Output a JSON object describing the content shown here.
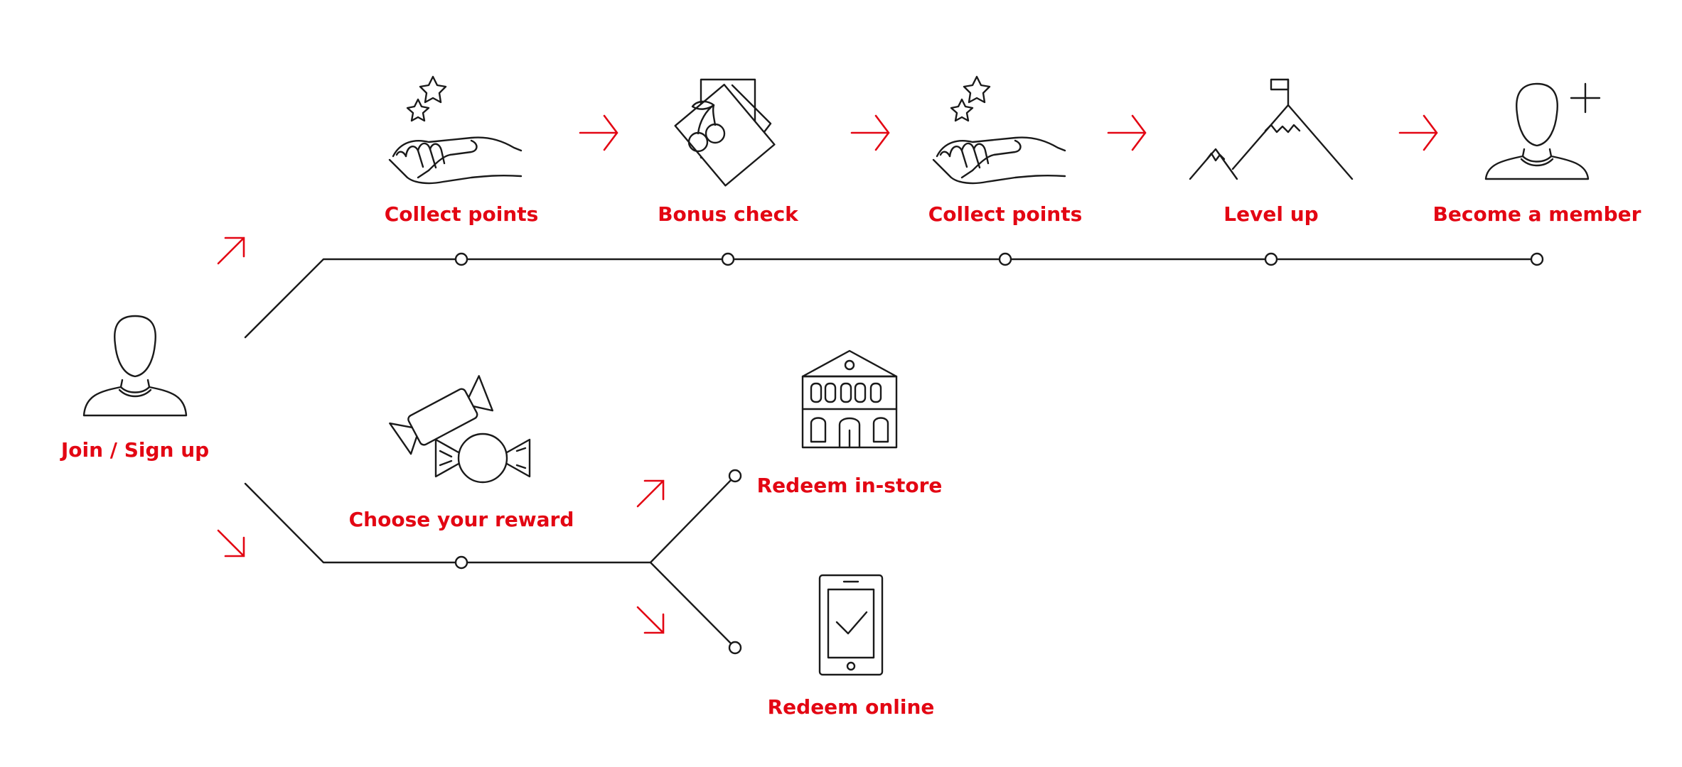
{
  "start": {
    "label": "Join / Sign up"
  },
  "membership_path": {
    "steps": [
      {
        "label": "Collect points",
        "icon": "hand-stars-icon"
      },
      {
        "label": "Bonus check",
        "icon": "cards-cherries-icon"
      },
      {
        "label": "Collect points",
        "icon": "hand-stars-icon"
      },
      {
        "label": "Level up",
        "icon": "mountain-flag-icon"
      },
      {
        "label": "Become a member",
        "icon": "person-plus-icon"
      }
    ]
  },
  "reward_path": {
    "step": {
      "label": "Choose your reward",
      "icon": "candy-icon"
    },
    "options": [
      {
        "label": "Redeem in-store",
        "icon": "store-building-icon"
      },
      {
        "label": "Redeem online",
        "icon": "smartphone-check-icon"
      }
    ]
  },
  "colors": {
    "accent": "#e30613",
    "line": "#1a1a1a"
  }
}
